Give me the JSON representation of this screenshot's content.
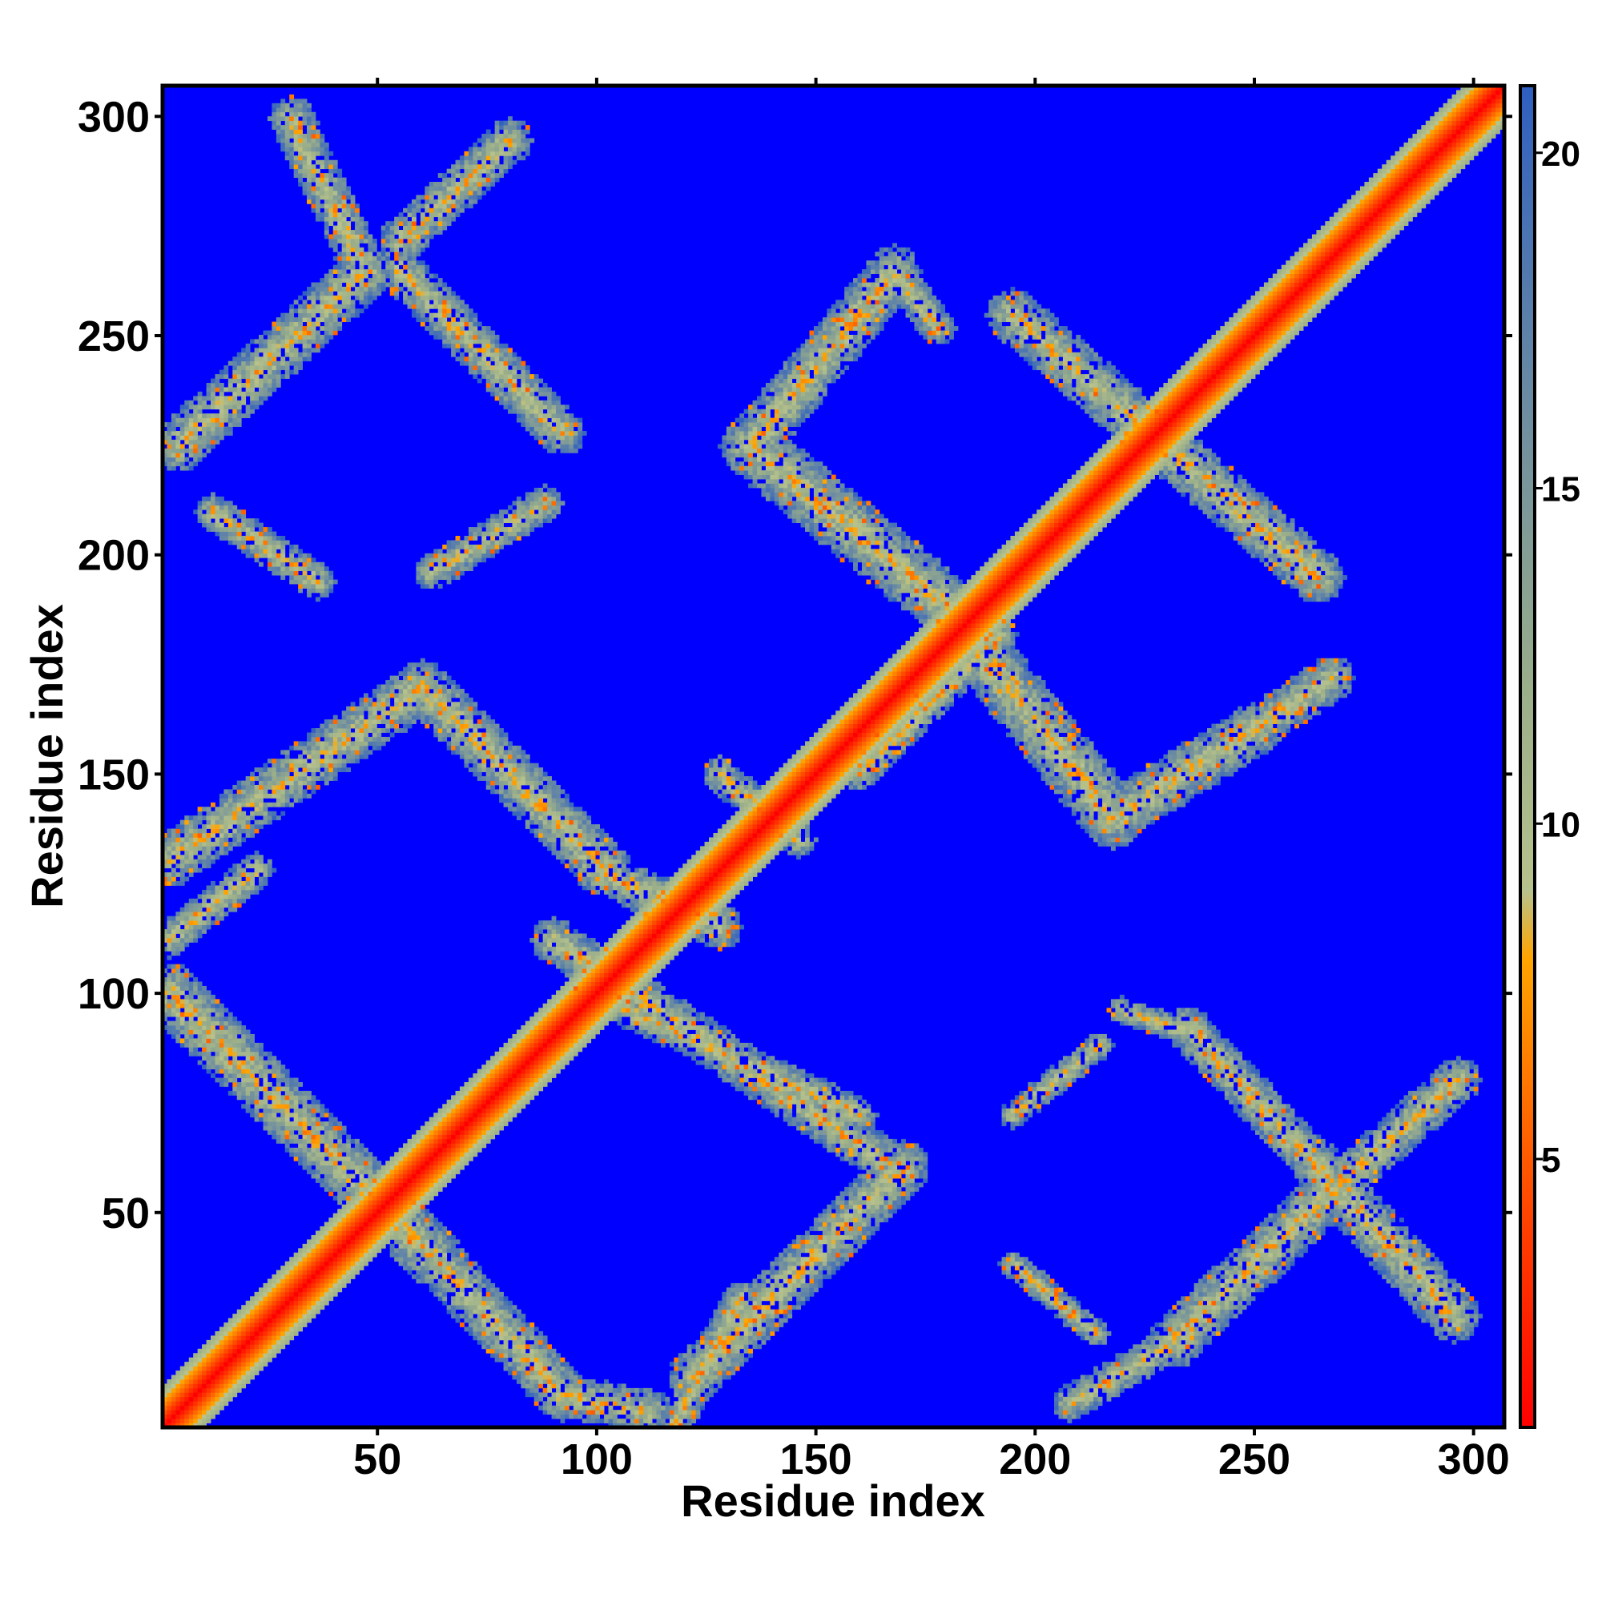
{
  "chart_data": {
    "type": "heatmap",
    "title": "",
    "xlabel": "Residue index",
    "ylabel": "Residue index",
    "xlim": [
      1,
      307
    ],
    "ylim": [
      1,
      307
    ],
    "x_ticks": [
      50,
      100,
      150,
      200,
      250,
      300
    ],
    "y_ticks": [
      50,
      100,
      150,
      200,
      250,
      300
    ],
    "colorbar": {
      "range": [
        1,
        21
      ],
      "ticks": [
        5,
        10,
        15,
        20
      ],
      "colors": [
        {
          "value": 1,
          "color": "#ff0000"
        },
        {
          "value": 4,
          "color": "#ff4000"
        },
        {
          "value": 8,
          "color": "#ffa500"
        },
        {
          "value": 9,
          "color": "#b7c28c"
        },
        {
          "value": 12,
          "color": "#9aae8a"
        },
        {
          "value": 16,
          "color": "#6f8ea0"
        },
        {
          "value": 21,
          "color": "#2e5fc0"
        }
      ],
      "background_color": "#0000ff"
    },
    "description_bands": [
      {
        "from": [
          1,
          1
        ],
        "to": [
          307,
          307
        ],
        "kind": "diagonal"
      }
    ],
    "contact_bands": [
      {
        "from": [
          2,
          100
        ],
        "to": [
          62,
          40
        ],
        "width": 7
      },
      {
        "from": [
          62,
          40
        ],
        "to": [
          92,
          8
        ],
        "width": 6
      },
      {
        "from": [
          92,
          8
        ],
        "to": [
          112,
          4
        ],
        "width": 5
      },
      {
        "from": [
          118,
          2
        ],
        "to": [
          133,
          30
        ],
        "width": 4
      },
      {
        "from": [
          122,
          12
        ],
        "to": [
          170,
          60
        ],
        "width": 6
      },
      {
        "from": [
          90,
          112
        ],
        "to": [
          165,
          62
        ],
        "width": 5
      },
      {
        "from": [
          98,
          100
        ],
        "to": [
          160,
          72
        ],
        "width": 4
      },
      {
        "from": [
          2,
          130
        ],
        "to": [
          60,
          170
        ],
        "width": 6
      },
      {
        "from": [
          60,
          170
        ],
        "to": [
          102,
          128
        ],
        "width": 6
      },
      {
        "from": [
          2,
          112
        ],
        "to": [
          22,
          128
        ],
        "width": 4
      },
      {
        "from": [
          100,
          128
        ],
        "to": [
          128,
          115
        ],
        "width": 5
      },
      {
        "from": [
          128,
          150
        ],
        "to": [
          146,
          135
        ],
        "width": 4
      },
      {
        "from": [
          4,
          225
        ],
        "to": [
          47,
          265
        ],
        "width": 6
      },
      {
        "from": [
          47,
          265
        ],
        "to": [
          30,
          300
        ],
        "width": 5
      },
      {
        "from": [
          55,
          272
        ],
        "to": [
          80,
          295
        ],
        "width": 5
      },
      {
        "from": [
          55,
          265
        ],
        "to": [
          92,
          228
        ],
        "width": 5
      },
      {
        "from": [
          12,
          210
        ],
        "to": [
          36,
          194
        ],
        "width": 4
      },
      {
        "from": [
          62,
          196
        ],
        "to": [
          88,
          212
        ],
        "width": 4
      },
      {
        "from": [
          135,
          225
        ],
        "to": [
          168,
          265
        ],
        "width": 6
      },
      {
        "from": [
          168,
          265
        ],
        "to": [
          178,
          252
        ],
        "width": 4
      },
      {
        "from": [
          135,
          225
        ],
        "to": [
          178,
          190
        ],
        "width": 7
      },
      {
        "from": [
          178,
          190
        ],
        "to": [
          192,
          175
        ],
        "width": 5
      },
      {
        "from": [
          195,
          255
        ],
        "to": [
          230,
          225
        ],
        "width": 6
      },
      {
        "from": [
          230,
          225
        ],
        "to": [
          265,
          195
        ],
        "width": 6
      },
      {
        "from": [
          190,
          175
        ],
        "to": [
          218,
          140
        ],
        "width": 7
      },
      {
        "from": [
          218,
          140
        ],
        "to": [
          250,
          160
        ],
        "width": 6
      },
      {
        "from": [
          250,
          160
        ],
        "to": [
          268,
          172
        ],
        "width": 5
      },
      {
        "from": [
          160,
          150
        ],
        "to": [
          192,
          182
        ],
        "width": 4
      },
      {
        "from": [
          208,
          6
        ],
        "to": [
          232,
          20
        ],
        "width": 4
      },
      {
        "from": [
          232,
          20
        ],
        "to": [
          265,
          52
        ],
        "width": 6
      },
      {
        "from": [
          265,
          52
        ],
        "to": [
          297,
          80
        ],
        "width": 5
      },
      {
        "from": [
          235,
          92
        ],
        "to": [
          265,
          60
        ],
        "width": 5
      },
      {
        "from": [
          265,
          60
        ],
        "to": [
          296,
          26
        ],
        "width": 6
      },
      {
        "from": [
          195,
          38
        ],
        "to": [
          214,
          22
        ],
        "width": 3
      },
      {
        "from": [
          195,
          72
        ],
        "to": [
          215,
          88
        ],
        "width": 3
      },
      {
        "from": [
          220,
          96
        ],
        "to": [
          238,
          90
        ],
        "width": 3
      }
    ]
  }
}
